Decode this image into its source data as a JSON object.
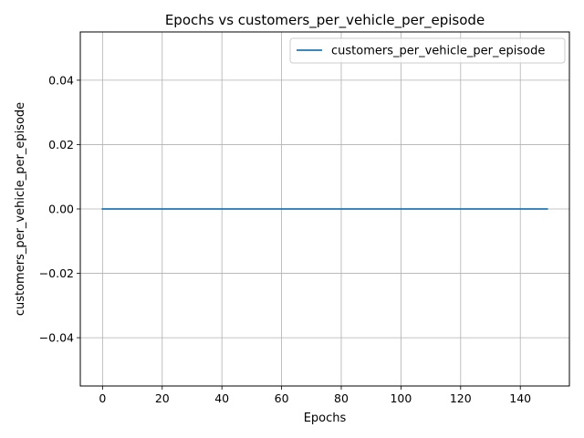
{
  "chart_data": {
    "type": "line",
    "title": "Epochs vs customers_per_vehicle_per_episode",
    "xlabel": "Epochs",
    "ylabel": "customers_per_vehicle_per_episode",
    "xlim": [
      -7.45,
      156.45
    ],
    "ylim": [
      -0.055,
      0.055
    ],
    "x_ticks": [
      0,
      20,
      40,
      60,
      80,
      100,
      120,
      140
    ],
    "y_ticks": [
      -0.04,
      -0.02,
      0.0,
      0.02,
      0.04
    ],
    "x_tick_labels": [
      "0",
      "20",
      "40",
      "60",
      "80",
      "100",
      "120",
      "140"
    ],
    "y_tick_labels": [
      "−0.04",
      "−0.02",
      "0.00",
      "0.02",
      "0.04"
    ],
    "grid": true,
    "legend_position": "top-right",
    "series": [
      {
        "name": "customers_per_vehicle_per_episode",
        "color": "#1f77b4",
        "x_start": 0,
        "x_end": 149,
        "constant_value": 0.0
      }
    ]
  }
}
